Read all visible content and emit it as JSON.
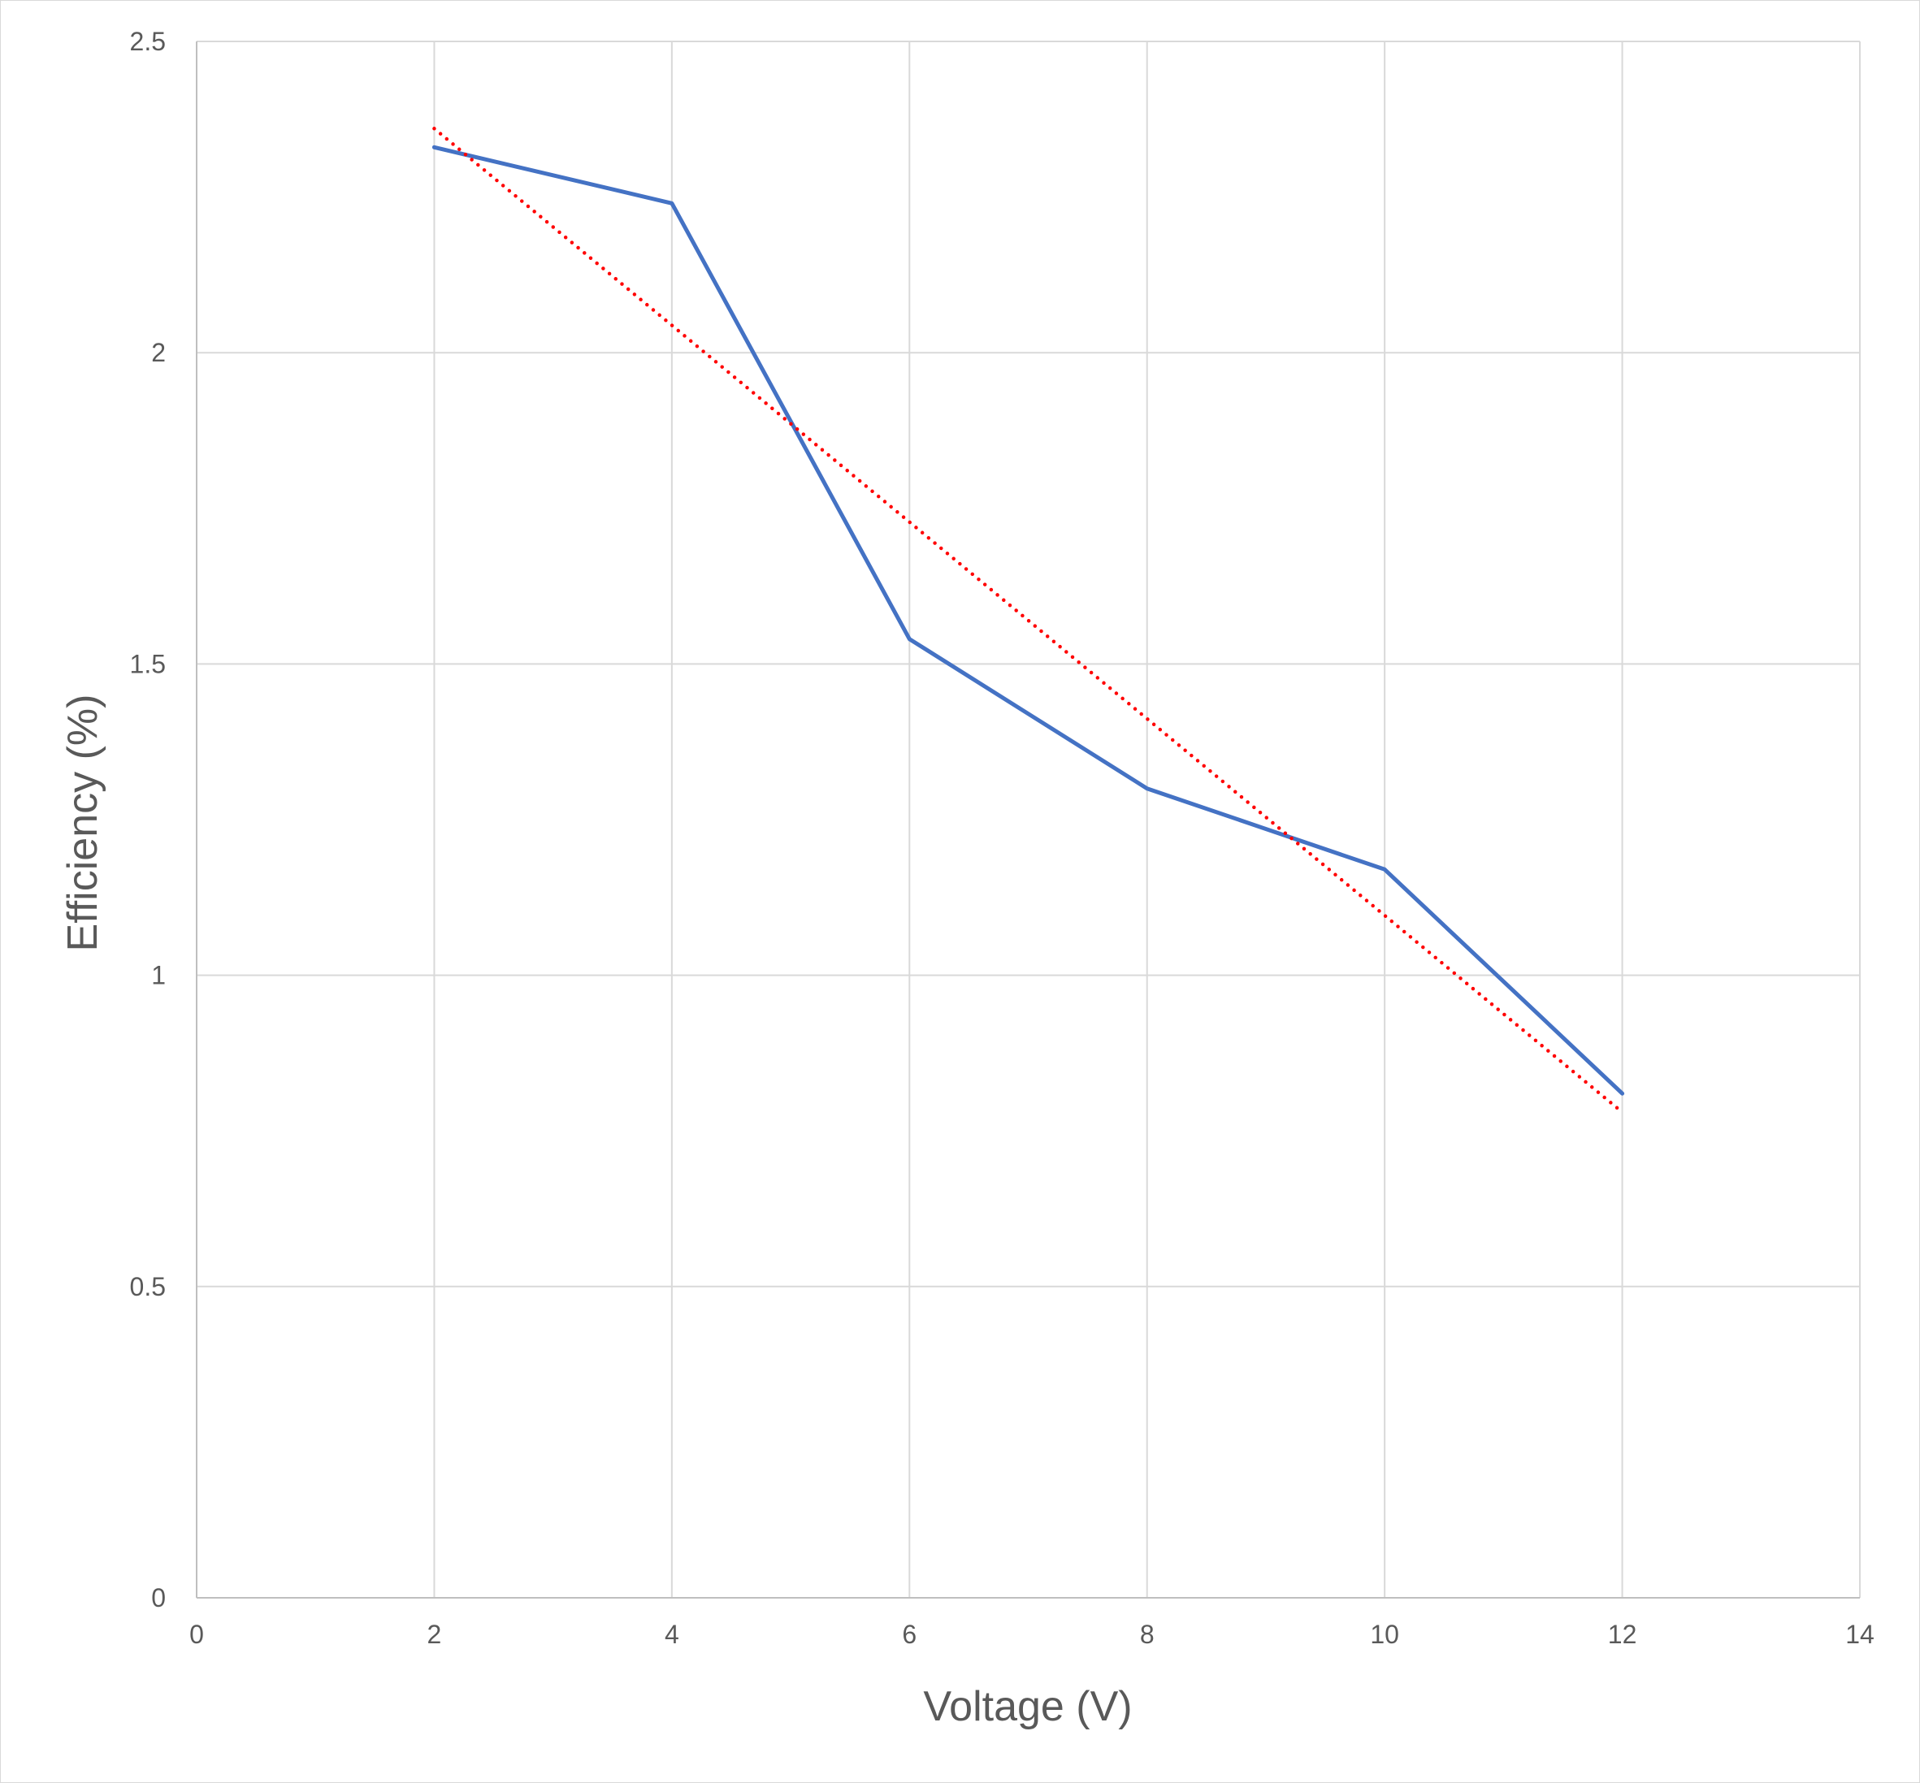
{
  "chart_data": {
    "type": "line",
    "title": "",
    "xlabel": "Voltage (V)",
    "ylabel": "Efficiency (%)",
    "xlim": [
      0,
      14
    ],
    "ylim": [
      0,
      2.5
    ],
    "x_ticks": [
      "0",
      "2",
      "4",
      "6",
      "8",
      "10",
      "12",
      "14"
    ],
    "y_ticks": [
      "0",
      "0.5",
      "1",
      "1.5",
      "2",
      "2.5"
    ],
    "grid": true,
    "legend": "none",
    "series": [
      {
        "style": "solid",
        "color": "#4472c4",
        "x": [
          2,
          4,
          6,
          8,
          10,
          12
        ],
        "y": [
          2.33,
          2.24,
          1.54,
          1.3,
          1.17,
          0.81
        ]
      }
    ],
    "trendline": {
      "type": "linear",
      "style": "dotted",
      "color": "#ff0000",
      "x": [
        2,
        12
      ],
      "y": [
        2.36,
        0.78
      ]
    }
  }
}
